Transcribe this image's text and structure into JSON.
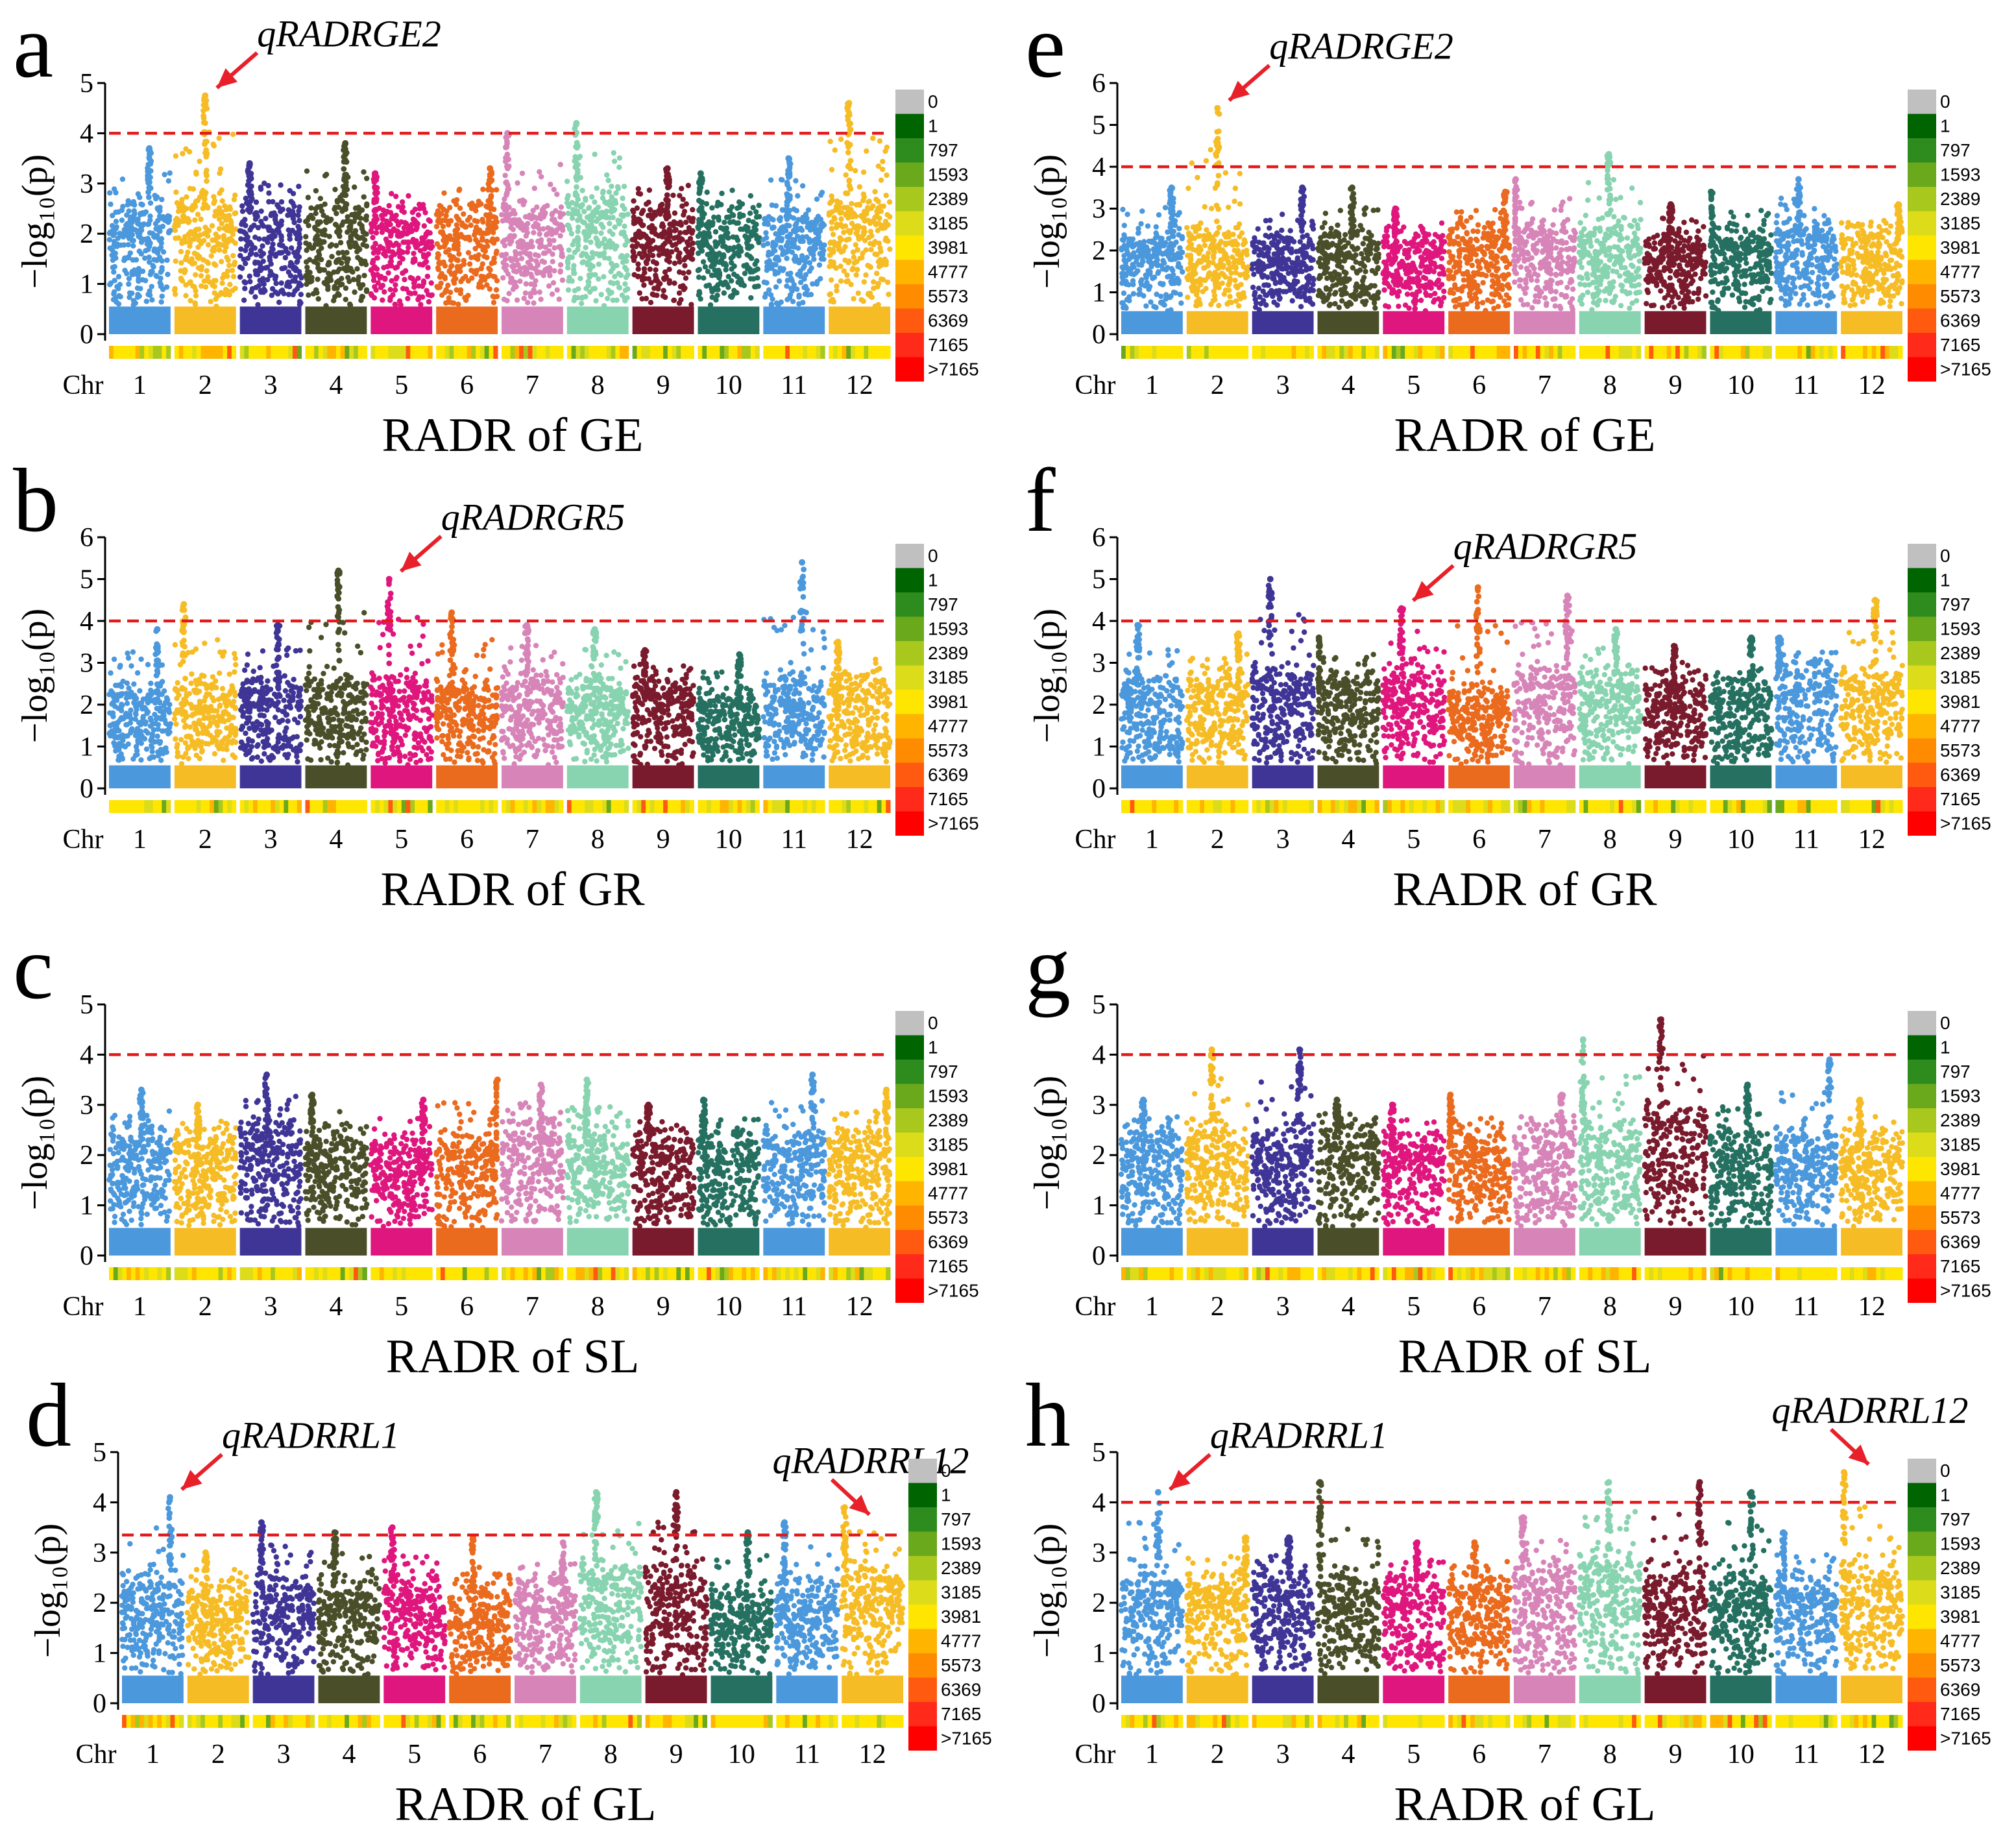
{
  "figure": {
    "y_axis_label": "−log₁₀(p)",
    "x_prefix": "Chr",
    "chromosomes": [
      "1",
      "2",
      "3",
      "4",
      "5",
      "6",
      "7",
      "8",
      "9",
      "10",
      "11",
      "12"
    ],
    "chr_colors": [
      "#4b98dc",
      "#f6bc25",
      "#3f3596",
      "#4a4f2a",
      "#df167d",
      "#ea6a1e",
      "#d785b8",
      "#88d3b0",
      "#7a1b2d",
      "#257060",
      "#4b98dc",
      "#f6bc25"
    ],
    "threshold_color": "#e31a1c",
    "arrow_color": "#e8202a",
    "legend": {
      "labels": [
        "0",
        "1",
        "797",
        "1593",
        "2389",
        "3185",
        "3981",
        "4777",
        "5573",
        "6369",
        "7165",
        ">7165"
      ],
      "colors": [
        "#c0c0c0",
        "#006400",
        "#2e8b1e",
        "#6aa81c",
        "#a8c81e",
        "#dcdc1a",
        "#ffe600",
        "#ffb400",
        "#ff8c00",
        "#ff5a10",
        "#ff2a1a",
        "#ff0000"
      ]
    }
  },
  "chart_data": [
    {
      "id": "a",
      "letter": "a",
      "type": "scatter",
      "xlabel": "RADR of  GE",
      "ylabel": "−log₁₀(p)",
      "ylim": [
        0,
        5
      ],
      "yticks": [
        0,
        1,
        2,
        3,
        4,
        5
      ],
      "threshold": 4.0,
      "chr_base": [
        2.2,
        2.4,
        2.2,
        2.2,
        2.1,
        2.1,
        2.2,
        2.4,
        2.2,
        2.1,
        2.1,
        2.4
      ],
      "chr_max": [
        3.7,
        4.75,
        3.4,
        3.8,
        3.2,
        3.3,
        4.0,
        4.2,
        3.3,
        3.2,
        3.5,
        4.6
      ],
      "annotations": [
        {
          "text": "qRADRGE2",
          "chr": 2,
          "pos": 0.5,
          "y": 4.75
        }
      ]
    },
    {
      "id": "b",
      "letter": "b",
      "type": "scatter",
      "xlabel": "RADR of  GR",
      "ylabel": "−log₁₀(p)",
      "ylim": [
        0,
        6
      ],
      "yticks": [
        0,
        1,
        2,
        3,
        4,
        5,
        6
      ],
      "threshold": 4.0,
      "chr_base": [
        2.0,
        2.2,
        2.2,
        2.3,
        2.2,
        2.1,
        2.3,
        2.2,
        2.2,
        1.8,
        2.3,
        2.3
      ],
      "chr_max": [
        3.8,
        4.4,
        3.9,
        5.2,
        5.0,
        4.2,
        3.9,
        3.8,
        3.3,
        3.2,
        5.4,
        3.5
      ],
      "annotations": [
        {
          "text": "qRADRGR5",
          "chr": 5,
          "pos": 0.3,
          "y": 5.0
        }
      ]
    },
    {
      "id": "c",
      "letter": "c",
      "type": "scatter",
      "xlabel": "RADR of  SL",
      "ylabel": "−log₁₀(p)",
      "ylim": [
        0,
        5
      ],
      "yticks": [
        0,
        1,
        2,
        3,
        4,
        5
      ],
      "threshold": 4.0,
      "chr_base": [
        2.1,
        2.0,
        2.2,
        2.1,
        2.0,
        2.0,
        2.2,
        2.1,
        2.1,
        2.0,
        2.1,
        2.0
      ],
      "chr_max": [
        3.3,
        3.0,
        3.6,
        3.2,
        3.1,
        3.5,
        3.4,
        3.5,
        3.0,
        3.1,
        3.6,
        3.3
      ],
      "annotations": []
    },
    {
      "id": "d",
      "letter": "d",
      "type": "scatter",
      "xlabel": "RADR of  GL",
      "ylabel": "−log₁₀(p)",
      "ylim": [
        0,
        5
      ],
      "yticks": [
        0,
        1,
        2,
        3,
        4,
        5
      ],
      "threshold": 3.35,
      "chr_base": [
        2.1,
        2.0,
        2.1,
        2.0,
        2.0,
        1.9,
        2.0,
        2.4,
        2.3,
        1.9,
        2.0,
        2.3
      ],
      "chr_max": [
        4.1,
        3.0,
        3.6,
        3.4,
        3.5,
        3.3,
        3.2,
        4.2,
        4.2,
        3.4,
        3.6,
        3.9
      ],
      "annotations": [
        {
          "text": "qRADRRL1",
          "chr": 1,
          "pos": 0.78,
          "y": 4.1
        },
        {
          "text": "qRADRRL12",
          "chr": 12,
          "pos": 0.05,
          "y": 3.6
        }
      ]
    },
    {
      "id": "e",
      "letter": "e",
      "type": "scatter",
      "xlabel": "RADR of  GE",
      "ylabel": "−log₁₀(p)",
      "ylim": [
        0,
        6
      ],
      "yticks": [
        0,
        1,
        2,
        3,
        4,
        5,
        6
      ],
      "threshold": 4.0,
      "chr_base": [
        2.0,
        2.1,
        2.0,
        2.0,
        2.0,
        2.1,
        2.2,
        2.3,
        2.0,
        2.1,
        2.2,
        2.1
      ],
      "chr_max": [
        3.5,
        5.4,
        3.5,
        3.5,
        3.0,
        3.4,
        3.7,
        4.3,
        3.1,
        3.4,
        3.7,
        3.1
      ],
      "annotations": [
        {
          "text": "qRADRGE2",
          "chr": 2,
          "pos": 0.5,
          "y": 5.4
        }
      ]
    },
    {
      "id": "f",
      "letter": "f",
      "type": "scatter",
      "xlabel": "RADR of  GR",
      "ylabel": "−log₁₀(p)",
      "ylim": [
        0,
        6
      ],
      "yticks": [
        0,
        1,
        2,
        3,
        4,
        5,
        6
      ],
      "threshold": 4.0,
      "chr_base": [
        2.2,
        2.3,
        2.4,
        2.3,
        2.5,
        2.1,
        2.5,
        2.3,
        2.2,
        2.2,
        2.6,
        2.4
      ],
      "chr_max": [
        3.9,
        3.7,
        5.0,
        3.6,
        4.3,
        4.8,
        4.6,
        3.8,
        3.4,
        3.6,
        3.6,
        4.5
      ],
      "annotations": [
        {
          "text": "qRADRGR5",
          "chr": 5,
          "pos": 0.3,
          "y": 4.3
        }
      ]
    },
    {
      "id": "g",
      "letter": "g",
      "type": "scatter",
      "xlabel": "RADR of  SL",
      "ylabel": "−log₁₀(p)",
      "ylim": [
        0,
        5
      ],
      "yticks": [
        0,
        1,
        2,
        3,
        4,
        5
      ],
      "threshold": 4.0,
      "chr_base": [
        2.0,
        2.2,
        2.2,
        2.2,
        2.0,
        2.0,
        2.2,
        2.2,
        2.6,
        2.0,
        2.1,
        2.0
      ],
      "chr_max": [
        3.1,
        4.1,
        4.1,
        3.1,
        3.0,
        3.2,
        3.2,
        4.3,
        4.7,
        3.4,
        3.9,
        3.1
      ],
      "annotations": []
    },
    {
      "id": "h",
      "letter": "h",
      "type": "scatter",
      "xlabel": "RADR of  GL",
      "ylabel": "−log₁₀(p)",
      "ylim": [
        0,
        5
      ],
      "yticks": [
        0,
        1,
        2,
        3,
        4,
        5
      ],
      "threshold": 4.0,
      "chr_base": [
        2.2,
        2.1,
        2.1,
        2.2,
        2.1,
        2.1,
        2.3,
        2.5,
        2.3,
        2.2,
        2.1,
        2.3
      ],
      "chr_max": [
        4.2,
        3.3,
        3.3,
        4.4,
        3.2,
        3.2,
        3.7,
        4.4,
        4.4,
        4.2,
        3.4,
        4.6
      ],
      "annotations": [
        {
          "text": "qRADRRL1",
          "chr": 1,
          "pos": 0.6,
          "y": 4.1
        },
        {
          "text": "qRADRRL12",
          "chr": 12,
          "pos": 0.05,
          "y": 4.6
        }
      ]
    }
  ]
}
